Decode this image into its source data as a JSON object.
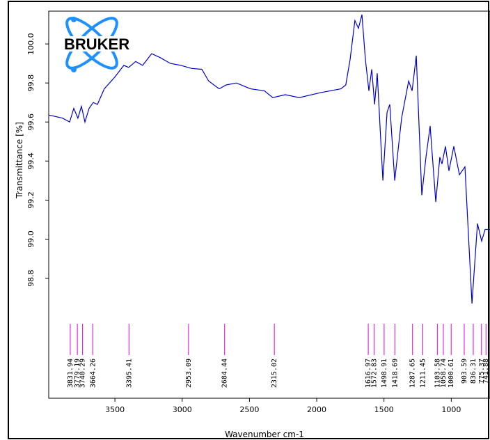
{
  "chart_data": {
    "type": "line",
    "logo_text": "BRUKER",
    "xlabel": "Wavenumber cm-1",
    "ylabel": "Transmittance [%]",
    "color": "#0000cc",
    "peak_color": "#e000e0",
    "xlim": [
      3992,
      712
    ],
    "ylim": [
      98.185,
      100.168
    ],
    "xticks": [
      3500,
      3000,
      2500,
      2000,
      1500,
      1000
    ],
    "yticks": [
      {
        "value": 100,
        "label": "100.0"
      },
      99.8,
      99.6,
      99.4,
      99.2,
      {
        "value": 99,
        "label": "99.0"
      },
      98.8
    ],
    "x": [
      3992,
      3889,
      3837,
      3806,
      3775,
      3749,
      3723,
      3692,
      3661,
      3630,
      3579,
      3501,
      3434,
      3398,
      3346,
      3294,
      3227,
      3164,
      3087,
      3009,
      2932,
      2854,
      2803,
      2725,
      2673,
      2596,
      2492,
      2389,
      2327,
      2234,
      2130,
      1975,
      1820,
      1784,
      1752,
      1716,
      1690,
      1664,
      1638,
      1612,
      1591,
      1570,
      1550,
      1508,
      1477,
      1457,
      1420,
      1369,
      1317,
      1291,
      1260,
      1219,
      1188,
      1157,
      1115,
      1085,
      1069,
      1043,
      1017,
      981,
      939,
      898,
      846,
      805,
      774,
      748,
      712
    ],
    "values": [
      99.636,
      99.62,
      99.6,
      99.67,
      99.62,
      99.68,
      99.6,
      99.67,
      99.7,
      99.69,
      99.77,
      99.83,
      99.89,
      99.88,
      99.91,
      99.89,
      99.95,
      99.93,
      99.9,
      99.89,
      99.875,
      99.87,
      99.81,
      99.77,
      99.79,
      99.8,
      99.77,
      99.76,
      99.725,
      99.74,
      99.725,
      99.75,
      99.77,
      99.79,
      99.92,
      100.12,
      100.08,
      100.15,
      99.92,
      99.76,
      99.87,
      99.69,
      99.85,
      99.3,
      99.65,
      99.69,
      99.3,
      99.62,
      99.81,
      99.76,
      99.94,
      99.225,
      99.42,
      99.58,
      99.19,
      99.42,
      99.385,
      99.475,
      99.35,
      99.475,
      99.33,
      99.37,
      98.67,
      99.08,
      98.99,
      99.05,
      99.05
    ],
    "peaks": [
      3831.94,
      3779.19,
      3740.29,
      3664.26,
      3395.41,
      2953.09,
      2684.44,
      2315.02,
      1616.97,
      1572.83,
      1498.91,
      1418.69,
      1287.65,
      1211.45,
      1103.58,
      1058.74,
      1000.61,
      903.59,
      836.31,
      775.37,
      741.88
    ]
  }
}
